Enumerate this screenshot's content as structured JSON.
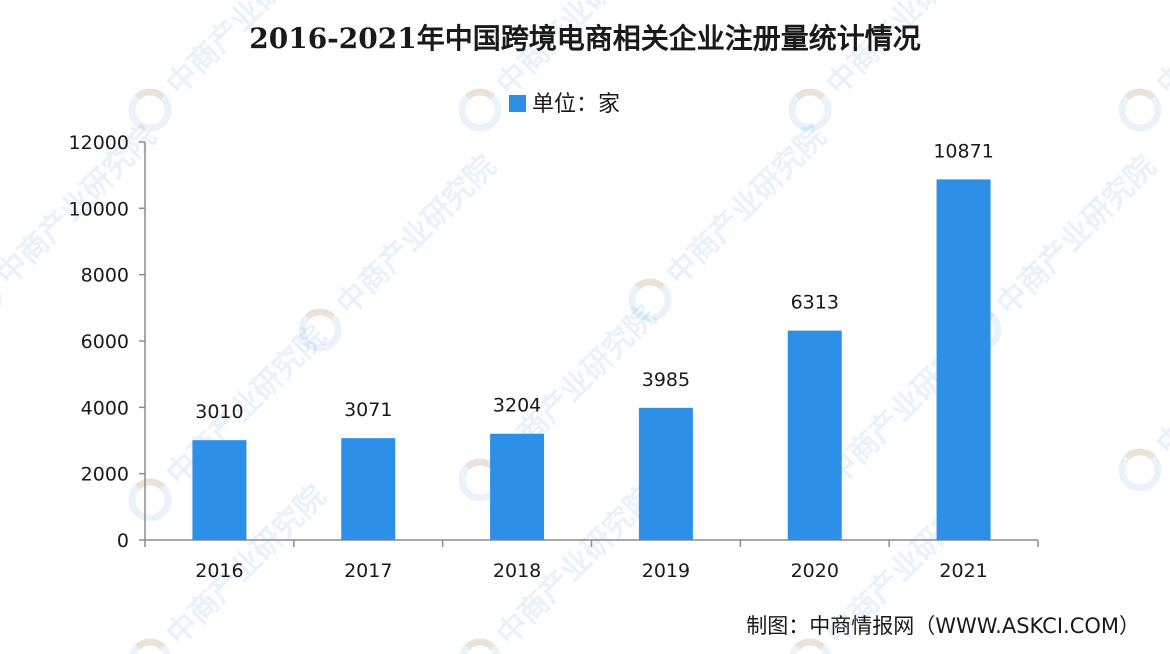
{
  "chart_data": {
    "type": "bar",
    "title": "2016-2021年中国跨境电商相关企业注册量统计情况",
    "legend": {
      "label": "单位：家",
      "position": "top-center"
    },
    "categories": [
      "2016",
      "2017",
      "2018",
      "2019",
      "2020",
      "2021"
    ],
    "series": [
      {
        "name": "单位：家",
        "values": [
          3010,
          3071,
          3204,
          3985,
          6313,
          10871
        ]
      }
    ],
    "data_labels": [
      "3010",
      "3071",
      "3204",
      "3985",
      "6313",
      "10871"
    ],
    "ylim": [
      0,
      12000
    ],
    "yticks": [
      0,
      2000,
      4000,
      6000,
      8000,
      10000,
      12000
    ],
    "ytick_labels": [
      "0",
      "2000",
      "4000",
      "6000",
      "8000",
      "10000",
      "12000"
    ],
    "grid": false,
    "bar_color": "#2e8fe6"
  },
  "source": "制图：中商情报网（WWW.ASKCI.COM）",
  "watermark": {
    "text": "中商产业研究院",
    "icon": "askci-logo-icon"
  }
}
